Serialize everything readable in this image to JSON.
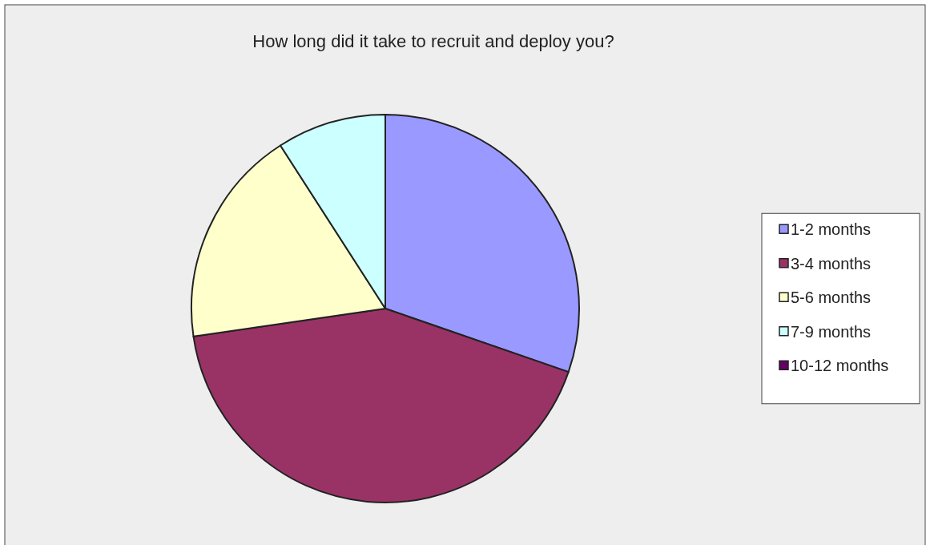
{
  "chart_data": {
    "type": "pie",
    "title": "How long did it take to recruit and deploy you?",
    "categories": [
      "1-2 months",
      "3-4 months",
      "5-6 months",
      "7-9 months",
      "10-12 months"
    ],
    "values": [
      30.3,
      42.4,
      18.2,
      9.1,
      0
    ],
    "colors": [
      "#9999ff",
      "#993366",
      "#ffffcc",
      "#ccffff",
      "#660066"
    ],
    "legend": "right"
  }
}
